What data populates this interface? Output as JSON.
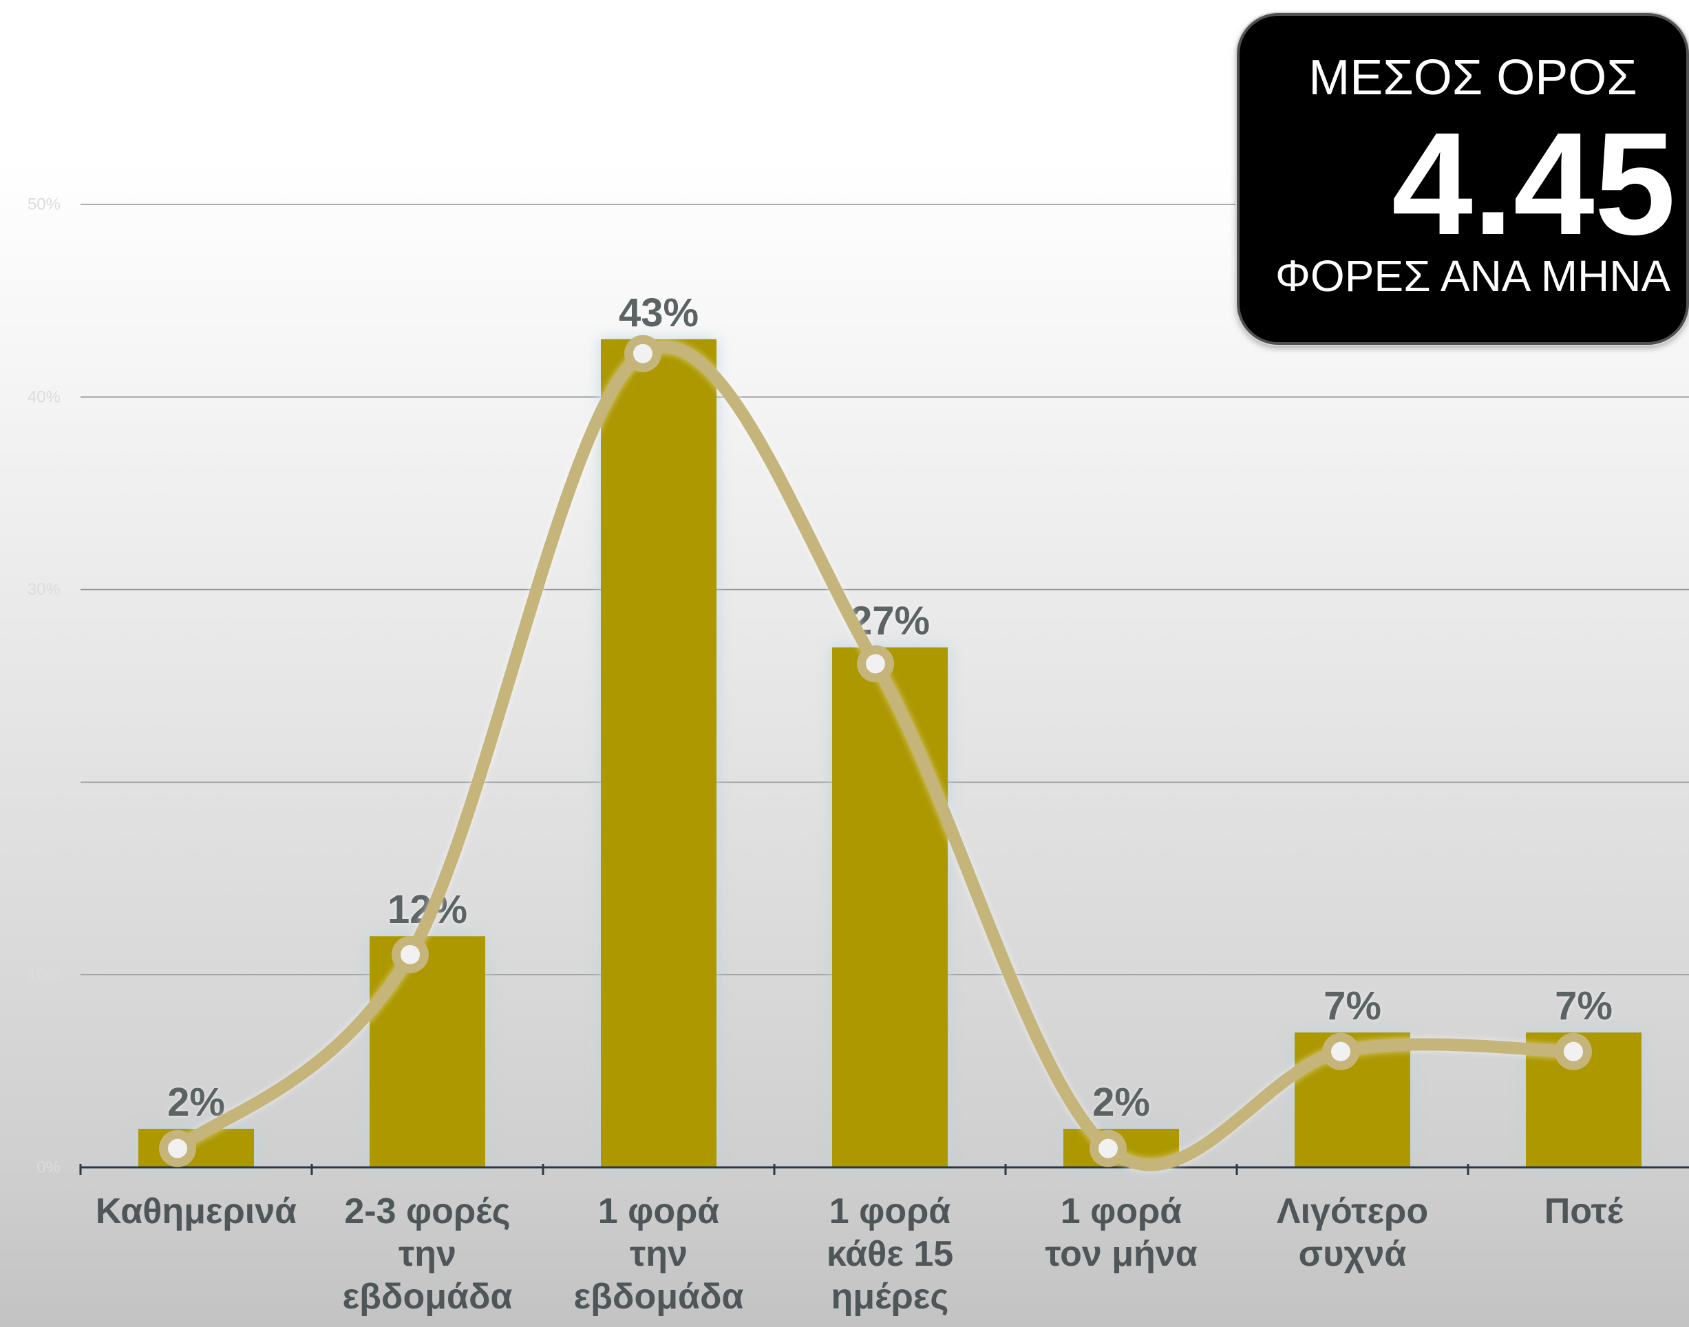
{
  "colors": {
    "bar": "#ad9800",
    "line": "#c6b57b",
    "marker_center": "#f1f1f1",
    "gridline": "#8f9497",
    "axis": "#2e3843",
    "summary_box_background": "#000000",
    "summary_box_text": "#ffffff"
  },
  "chart_data": {
    "type": "bar",
    "categories": [
      "Καθημερινά",
      "2-3 φορές\nτην\nεβδομάδα",
      "1 φορά\nτην\nεβδομάδα",
      "1 φορά\nκάθε 15\nημέρες",
      "1 φορά\nτον μήνα",
      "Λιγότερο\nσυχνά",
      "Ποτέ"
    ],
    "values": [
      2,
      12,
      43,
      27,
      2,
      7,
      7
    ],
    "data_labels": [
      "2%",
      "12%",
      "43%",
      "27%",
      "2%",
      "7%",
      "7%"
    ],
    "line_series": {
      "values": [
        2,
        12,
        43,
        27,
        2,
        7,
        7
      ],
      "smooth": true,
      "markers": true
    },
    "ylim": [
      0,
      50
    ],
    "gridlines": [
      10,
      20,
      30,
      40,
      50
    ],
    "ytick_labels": [
      {
        "value": 0,
        "label": "0%"
      },
      {
        "value": 10,
        "label": "10%"
      },
      {
        "value": 30,
        "label": "30%"
      },
      {
        "value": 40,
        "label": "40%"
      },
      {
        "value": 50,
        "label": "50%"
      }
    ],
    "grid": true,
    "legend": "none",
    "annotation": {
      "title": "ΜΕΣΟΣ ΟΡΟΣ",
      "value": "4.45",
      "unit": "ΦΟΡΕΣ ΑΝΑ ΜΗΝΑ"
    }
  }
}
